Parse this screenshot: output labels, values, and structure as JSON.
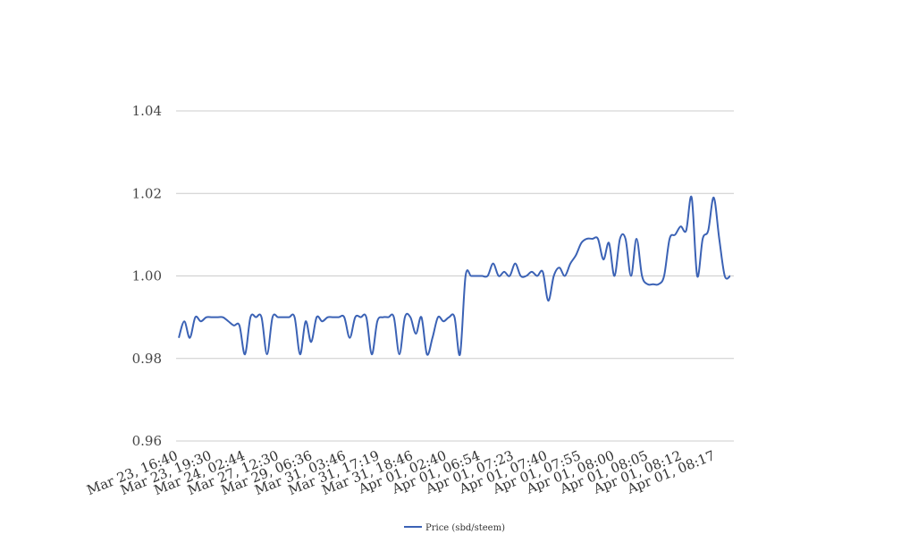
{
  "chart_data": {
    "type": "line",
    "title": "",
    "xlabel": "",
    "ylabel": "",
    "ylim": [
      0.96,
      1.04
    ],
    "y_ticks": [
      "0.96",
      "0.98",
      "1.00",
      "1.02",
      "1.04"
    ],
    "y_tick_values": [
      0.96,
      0.98,
      1.0,
      1.02,
      1.04
    ],
    "grid": "horizontal",
    "legend_position": "bottom-center",
    "x_tick_labels": [
      "Mar 23, 16:40",
      "Mar 23, 19:30",
      "Mar 24, 02:44",
      "Mar 27, 12:30",
      "Mar 29, 06:36",
      "Mar 31, 03:46",
      "Mar 31, 17:19",
      "Mar 31, 18:46",
      "Apr 01, 02:40",
      "Apr 01, 06:54",
      "Apr 01, 07:23",
      "Apr 01, 07:40",
      "Apr 01, 07:55",
      "Apr 01, 08:00",
      "Apr 01, 08:05",
      "Apr 01, 08:12",
      "Apr 01, 08:17"
    ],
    "series": [
      {
        "name": "Price (sbd/steem)",
        "color": "#3b62b5",
        "values": [
          0.985,
          0.989,
          0.985,
          0.99,
          0.989,
          0.99,
          0.99,
          0.99,
          0.99,
          0.989,
          0.988,
          0.988,
          0.981,
          0.99,
          0.99,
          0.99,
          0.981,
          0.99,
          0.99,
          0.99,
          0.99,
          0.99,
          0.981,
          0.989,
          0.984,
          0.99,
          0.989,
          0.99,
          0.99,
          0.99,
          0.99,
          0.985,
          0.99,
          0.99,
          0.99,
          0.981,
          0.989,
          0.99,
          0.99,
          0.99,
          0.981,
          0.99,
          0.99,
          0.986,
          0.99,
          0.981,
          0.985,
          0.99,
          0.989,
          0.99,
          0.99,
          0.981,
          1.0,
          1.0,
          1.0,
          1.0,
          1.0,
          1.003,
          1.0,
          1.001,
          1.0,
          1.003,
          1.0,
          1.0,
          1.001,
          1.0,
          1.001,
          0.994,
          1.0,
          1.002,
          1.0,
          1.003,
          1.005,
          1.008,
          1.009,
          1.009,
          1.009,
          1.004,
          1.008,
          1.0,
          1.009,
          1.009,
          1.0,
          1.009,
          1.0,
          0.998,
          0.998,
          0.998,
          1.0,
          1.009,
          1.01,
          1.012,
          1.011,
          1.019,
          1.0,
          1.009,
          1.011,
          1.019,
          1.009,
          1.0,
          1.0
        ]
      }
    ]
  }
}
